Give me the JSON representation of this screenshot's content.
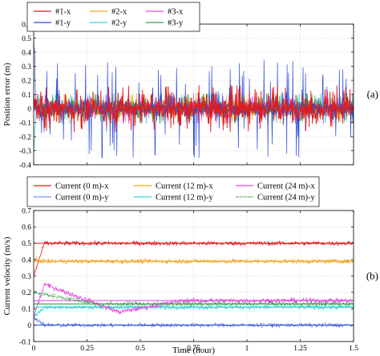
{
  "chart_data": [
    {
      "type": "line",
      "panel_label": "(a)",
      "xlabel": "",
      "ylabel": "Position error (m)",
      "xlim": [
        0,
        1.5
      ],
      "ylim": [
        -0.4,
        0.6
      ],
      "xticks": [
        0,
        0.25,
        0.5,
        0.75,
        1,
        1.25,
        1.5
      ],
      "yticks": [
        -0.4,
        -0.3,
        -0.2,
        -0.1,
        0,
        0.1,
        0.2,
        0.3,
        0.4,
        0.5,
        0.6
      ],
      "grid": true,
      "legend_position": "top-center, 3 columns, boxed",
      "series": [
        {
          "name": "#1-x",
          "color": "#e41a1c",
          "style": "solid",
          "initial": 0.1,
          "band": 0.08,
          "spike": 0.09
        },
        {
          "name": "#1-y",
          "color": "#2b4bd9",
          "style": "solid",
          "initial": 0.55,
          "band": 0.06,
          "spike": 0.3
        },
        {
          "name": "#2-x",
          "color": "#f5a623",
          "style": "solid",
          "initial": 0.05,
          "band": 0.05,
          "spike": 0.06
        },
        {
          "name": "#2-y",
          "color": "#36d6d6",
          "style": "solid",
          "initial": -0.35,
          "band": 0.05,
          "spike": 0.06
        },
        {
          "name": "#3-x",
          "color": "#e34de3",
          "style": "solid",
          "initial": 0.05,
          "band": 0.05,
          "spike": 0.06
        },
        {
          "name": "#3-y",
          "color": "#2e9e3f",
          "style": "solid",
          "initial": 0.05,
          "band": 0.05,
          "spike": 0.06
        }
      ]
    },
    {
      "type": "line",
      "panel_label": "(b)",
      "xlabel": "Time (hour)",
      "ylabel": "Current velocity (m/s)",
      "xlim": [
        0,
        1.5
      ],
      "ylim": [
        -0.1,
        0.7
      ],
      "xticks": [
        0,
        0.25,
        0.5,
        0.75,
        1,
        1.25,
        1.5
      ],
      "xtick_labels": [
        "0",
        "0.25",
        "0.5",
        "0.75",
        "1",
        "1.25",
        "1.5"
      ],
      "yticks": [
        -0.1,
        0,
        0.1,
        0.2,
        0.3,
        0.4,
        0.5,
        0.6,
        0.7
      ],
      "grid": true,
      "legend_position": "top-center, 3 columns, boxed",
      "series": [
        {
          "name": "Current (0 m)-x",
          "color": "#e41a1c",
          "style": "solid",
          "steady": 0.5,
          "noise": 0.012
        },
        {
          "name": "Current (0 m)-y",
          "color": "#2b4bd9",
          "style": "dotted",
          "steady": 0.0,
          "noise": 0.012
        },
        {
          "name": "Current (12 m)-x",
          "color": "#f5a623",
          "style": "solid",
          "steady": 0.39,
          "noise": 0.012
        },
        {
          "name": "Current (12 m)-y",
          "color": "#36d6d6",
          "style": "solid",
          "steady": 0.11,
          "noise": 0.012
        },
        {
          "name": "Current (24 m)-x",
          "color": "#e34de3",
          "style": "solid",
          "steady": 0.15,
          "noise": 0.014,
          "transient_peak": 0.25
        },
        {
          "name": "Current (24 m)-y",
          "color": "#2e9e3f",
          "style": "dotted",
          "steady": 0.13,
          "noise": 0.014
        }
      ],
      "reference_lines": [
        {
          "value": 0.5,
          "color": "#e41a1c"
        },
        {
          "value": 0.39,
          "color": "#f5a623"
        },
        {
          "value": 0.15,
          "color": "#e34de3"
        },
        {
          "value": 0.13,
          "color": "#2e9e3f"
        },
        {
          "value": 0.11,
          "color": "#36d6d6"
        },
        {
          "value": 0.0,
          "color": "#2b4bd9"
        }
      ]
    }
  ]
}
